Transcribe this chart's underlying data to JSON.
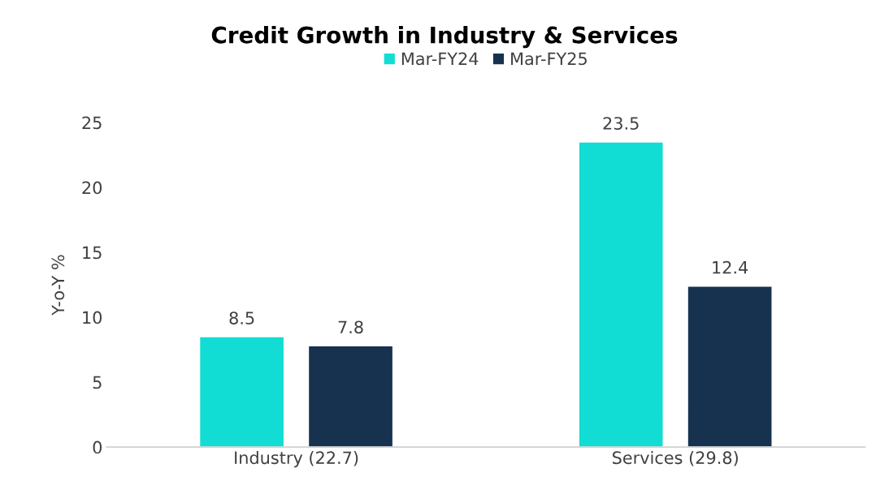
{
  "chart_data": {
    "type": "bar",
    "title": "Credit Growth in Industry & Services",
    "ylabel": "Y-o-Y %",
    "categories": [
      "Industry (22.7)",
      "Services (29.8)"
    ],
    "series": [
      {
        "name": "Mar-FY24",
        "color": "#12ddd4",
        "values": [
          8.5,
          23.5
        ]
      },
      {
        "name": "Mar-FY25",
        "color": "#16324f",
        "values": [
          7.8,
          12.4
        ]
      }
    ],
    "ylim": [
      0,
      25
    ],
    "yticks": [
      0,
      5,
      10,
      15,
      20,
      25
    ],
    "grid": false,
    "legend": "top",
    "data_labels": true
  }
}
